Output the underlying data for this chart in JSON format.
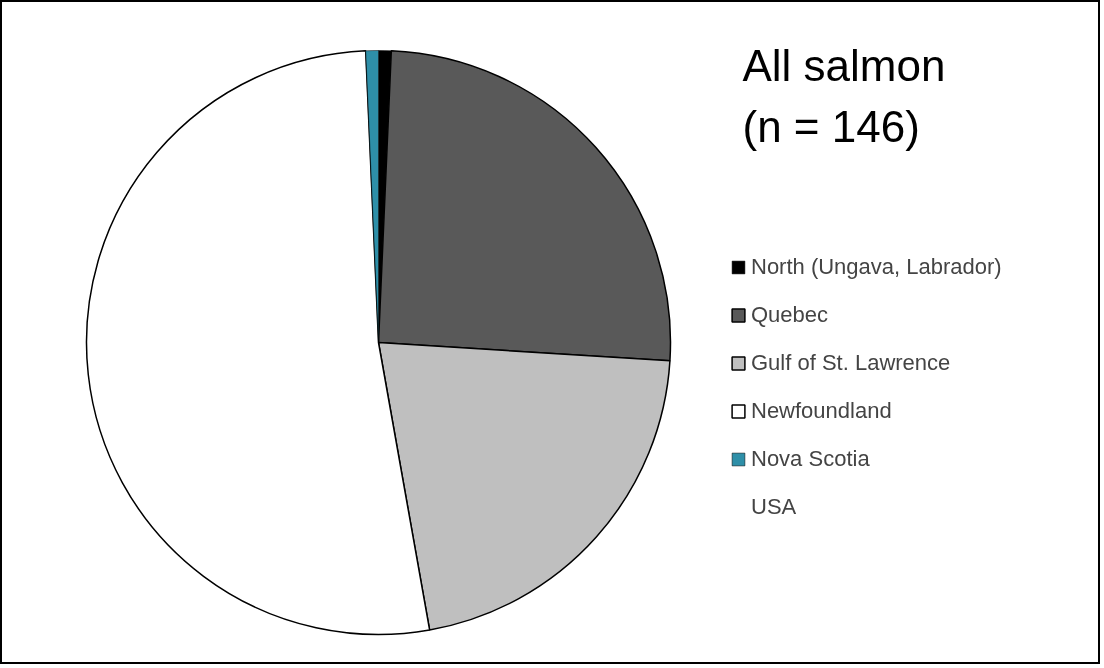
{
  "chart_data": {
    "type": "pie",
    "title": "All salmon\n(n = 146)",
    "categories": [
      "North (Ungava, Labrador)",
      "Quebec",
      "Gulf of St. Lawrence",
      "Newfoundland",
      "Nova Scotia",
      "USA"
    ],
    "values": [
      0.7,
      25.3,
      21.2,
      52.1,
      0.7,
      0.0
    ],
    "colors": [
      "#000000",
      "#595959",
      "#bfbfbf",
      "#ffffff",
      "#2e8fa8",
      "#e07b39"
    ],
    "legend": "right"
  }
}
